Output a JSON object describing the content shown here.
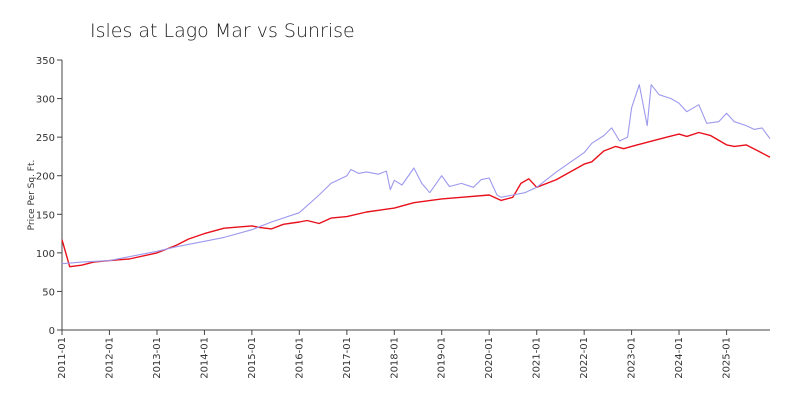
{
  "chart_data": {
    "type": "line",
    "title": "Isles at Lago Mar vs Sunrise",
    "xlabel": "",
    "ylabel": "Price Per Sq. Ft.",
    "ylim": [
      0,
      350
    ],
    "yticks": [
      0,
      50,
      100,
      150,
      200,
      250,
      300,
      350
    ],
    "xticks": [
      "2011-01",
      "2012-01",
      "2013-01",
      "2014-01",
      "2015-01",
      "2016-01",
      "2017-01",
      "2018-01",
      "2019-01",
      "2020-01",
      "2021-01",
      "2022-01",
      "2023-01",
      "2024-01",
      "2025-01"
    ],
    "grid": false,
    "legend": "none",
    "series": [
      {
        "color": "#e8101b",
        "x": [
          "2011-01",
          "2011-03",
          "2011-06",
          "2011-09",
          "2012-01",
          "2012-06",
          "2013-01",
          "2013-06",
          "2013-09",
          "2014-01",
          "2014-06",
          "2015-01",
          "2015-03",
          "2015-06",
          "2015-09",
          "2016-01",
          "2016-03",
          "2016-06",
          "2016-09",
          "2017-01",
          "2017-06",
          "2018-01",
          "2018-06",
          "2019-01",
          "2019-06",
          "2020-01",
          "2020-04",
          "2020-07",
          "2020-09",
          "2020-11",
          "2021-01",
          "2021-06",
          "2022-01",
          "2022-03",
          "2022-06",
          "2022-09",
          "2022-11",
          "2023-01",
          "2023-04",
          "2023-07",
          "2023-10",
          "2024-01",
          "2024-03",
          "2024-06",
          "2024-09",
          "2025-01",
          "2025-03",
          "2025-06",
          "2025-09",
          "2025-12"
        ],
        "values": [
          117,
          82,
          84,
          88,
          90,
          92,
          100,
          110,
          118,
          125,
          132,
          135,
          133,
          131,
          137,
          140,
          142,
          138,
          145,
          147,
          153,
          158,
          165,
          170,
          172,
          175,
          168,
          172,
          190,
          196,
          185,
          195,
          215,
          218,
          232,
          238,
          235,
          238,
          242,
          246,
          250,
          254,
          251,
          256,
          252,
          240,
          238,
          240,
          232,
          224
        ]
      },
      {
        "color": "#9d99ee",
        "x": [
          "2011-01",
          "2011-06",
          "2012-01",
          "2012-06",
          "2013-01",
          "2013-06",
          "2014-01",
          "2014-06",
          "2015-01",
          "2015-06",
          "2016-01",
          "2016-06",
          "2016-09",
          "2017-01",
          "2017-02",
          "2017-04",
          "2017-06",
          "2017-09",
          "2017-11",
          "2017-12",
          "2018-01",
          "2018-03",
          "2018-06",
          "2018-08",
          "2018-10",
          "2019-01",
          "2019-03",
          "2019-06",
          "2019-09",
          "2019-11",
          "2020-01",
          "2020-03",
          "2020-04",
          "2020-07",
          "2020-10",
          "2021-01",
          "2021-06",
          "2022-01",
          "2022-03",
          "2022-06",
          "2022-08",
          "2022-10",
          "2022-12",
          "2023-01",
          "2023-03",
          "2023-05",
          "2023-06",
          "2023-08",
          "2023-11",
          "2024-01",
          "2024-03",
          "2024-06",
          "2024-08",
          "2024-11",
          "2025-01",
          "2025-03",
          "2025-06",
          "2025-08",
          "2025-10",
          "2025-12"
        ],
        "values": [
          86,
          88,
          90,
          95,
          102,
          108,
          115,
          120,
          130,
          140,
          152,
          175,
          190,
          200,
          208,
          203,
          205,
          202,
          206,
          182,
          194,
          188,
          210,
          190,
          178,
          200,
          186,
          190,
          185,
          195,
          197,
          175,
          172,
          175,
          178,
          185,
          205,
          230,
          242,
          252,
          262,
          245,
          250,
          288,
          318,
          265,
          318,
          305,
          300,
          294,
          283,
          292,
          268,
          270,
          281,
          270,
          265,
          260,
          262,
          248
        ]
      }
    ]
  }
}
